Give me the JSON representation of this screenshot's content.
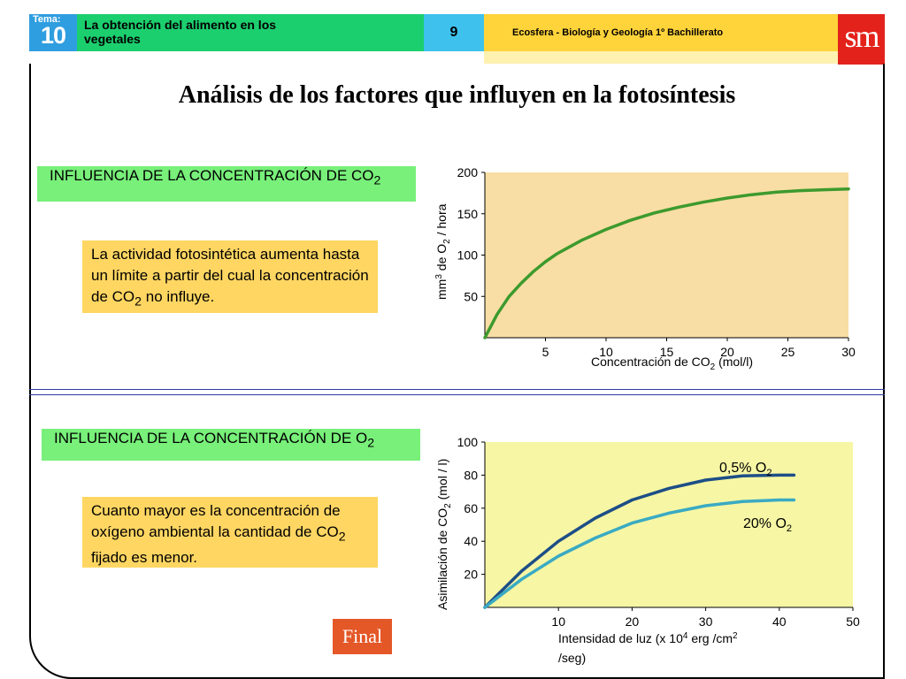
{
  "header": {
    "tema_label": "Tema:",
    "tema_number": "10",
    "topic_line1": "La obtención del alimento en los",
    "topic_line2": "vegetales",
    "page": "9",
    "book": "Ecosfera - Biología y Geología 1º Bachillerato",
    "logo": "sm"
  },
  "title": "Análisis de los factores que influyen en la fotosíntesis",
  "section1": {
    "label_text": "INFLUENCIA DE LA CONCENTRACIÓN DE CO",
    "label_sub": "2",
    "note_before": "La actividad fotosintética aumenta hasta un límite a partir del cual la concentración de CO",
    "note_sub": "2",
    "note_after": " no influye."
  },
  "section2": {
    "label_text": "INFLUENCIA DE LA CONCENTRACIÓN DE O",
    "label_sub": "2",
    "note_before": "Cuanto mayor es la concentración de oxígeno ambiental la cantidad de CO",
    "note_sub": "2",
    "note_after": " fijado es menor."
  },
  "final_button": "Final",
  "colors": {
    "chart1_bg": "#f8dea4",
    "chart1_line": "#3d9a2e",
    "chart2_bg": "#f6f6a4",
    "chart2_line_a": "#1d4e87",
    "chart2_line_b": "#3aaac3",
    "label_green": "#78f07a",
    "note_yellow": "#ffd662"
  },
  "chart_data": [
    {
      "type": "line",
      "xlabel_before": "Concentración de CO",
      "xlabel_sub": "2",
      "xlabel_after": " (mol/l)",
      "ylabel_before": "mm",
      "ylabel_sup": "3",
      "ylabel_mid": " de O",
      "ylabel_sub": "2",
      "ylabel_after": " / hora",
      "xlim": [
        0,
        30
      ],
      "ylim": [
        0,
        200
      ],
      "x_ticks": [
        5,
        10,
        15,
        20,
        25,
        30
      ],
      "y_ticks": [
        50,
        100,
        150,
        200
      ],
      "series": [
        {
          "x": [
            0,
            1,
            2,
            3,
            4,
            5,
            6,
            8,
            10,
            12,
            14,
            16,
            18,
            20,
            22,
            24,
            26,
            28,
            30
          ],
          "y": [
            0,
            28,
            50,
            66,
            80,
            92,
            102,
            118,
            131,
            142,
            151,
            158,
            164,
            169,
            173,
            176,
            178,
            179,
            180
          ]
        }
      ]
    },
    {
      "type": "line",
      "xlabel_before": "Intensidad de luz (x 10",
      "xlabel_sup": "4",
      "xlabel_mid": " erg /cm",
      "xlabel_sup2": "2",
      "xlabel_after": " /seg)",
      "ylabel_before": "Asimilación de CO",
      "ylabel_sub": "2",
      "ylabel_after": " (mol / l)",
      "xlim": [
        0,
        50
      ],
      "ylim": [
        0,
        100
      ],
      "x_ticks": [
        10,
        20,
        30,
        40,
        50
      ],
      "y_ticks": [
        20,
        40,
        60,
        80,
        100
      ],
      "series": [
        {
          "name_before": "0,5% O",
          "name_sub": "2",
          "x": [
            0,
            5,
            10,
            15,
            20,
            25,
            30,
            35,
            40,
            42
          ],
          "y": [
            0,
            22,
            40,
            54,
            65,
            72,
            77,
            79.5,
            80,
            80
          ]
        },
        {
          "name_before": "20% O",
          "name_sub": "2",
          "x": [
            0,
            5,
            10,
            15,
            20,
            25,
            30,
            35,
            40,
            42
          ],
          "y": [
            0,
            17,
            31,
            42,
            51,
            57,
            61.5,
            64,
            65,
            65
          ]
        }
      ]
    }
  ]
}
